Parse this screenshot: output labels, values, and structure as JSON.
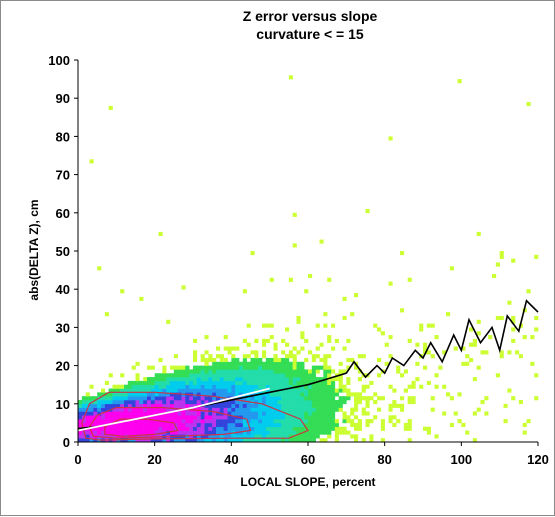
{
  "chart_data": {
    "type": "scatter",
    "title": "Z error versus slope",
    "subtitle": "curvature < = 15",
    "xlabel": "LOCAL SLOPE, percent",
    "ylabel": "abs(DELTA Z), cm",
    "xlim": [
      0,
      120
    ],
    "ylim": [
      0,
      100
    ],
    "x_ticks": [
      "0",
      "20",
      "40",
      "60",
      "80",
      "100",
      "120"
    ],
    "y_ticks": [
      "0",
      "10",
      "20",
      "30",
      "40",
      "50",
      "60",
      "70",
      "80",
      "90",
      "100"
    ],
    "grid": false,
    "colors": {
      "sparse": "#ccff33",
      "low": "#33dd55",
      "mid": "#00ccee",
      "high": "#3344dd",
      "peak": "#ff00ee",
      "mean_line": "#000000",
      "fit_line": "#ffffff",
      "contour": "#cc3344"
    },
    "series": [
      {
        "name": "",
        "type": "line",
        "x": [
          0,
          5,
          10,
          15,
          20,
          25,
          30,
          35,
          40,
          45,
          50,
          55,
          60,
          65,
          70,
          72,
          75,
          78,
          80,
          82,
          85,
          88,
          90,
          92,
          95,
          98,
          100,
          102,
          105,
          108,
          110,
          112,
          115,
          117,
          118,
          120
        ],
        "y": [
          3.5,
          4,
          5,
          6,
          7,
          8,
          9,
          10,
          11,
          12,
          13,
          14,
          15,
          16.5,
          18,
          21,
          17,
          20,
          18,
          22,
          20,
          24,
          22,
          26,
          21,
          28,
          24,
          32,
          26,
          30,
          24,
          33,
          29,
          37,
          36,
          34
        ]
      },
      {
        "name": "",
        "type": "line",
        "x": [
          0,
          10,
          20,
          30,
          40,
          50
        ],
        "y": [
          3,
          5,
          7,
          9,
          11.5,
          14
        ]
      }
    ]
  }
}
